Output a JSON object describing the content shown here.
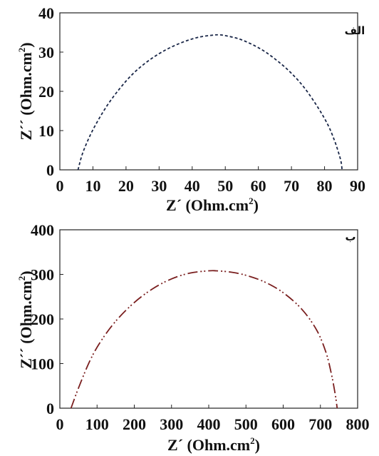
{
  "chart_data": [
    {
      "type": "line",
      "panel_label": "الف",
      "xlabel": "Z´ (Ohm.cm",
      "xlabel_sup": "2",
      "xlabel_end": ")",
      "ylabel": "Z´´ (Ohm.cm",
      "ylabel_sup": "2",
      "ylabel_end": ")",
      "xlim": [
        0,
        90
      ],
      "ylim": [
        0,
        40
      ],
      "xticks": [
        0,
        10,
        20,
        30,
        40,
        50,
        60,
        70,
        80,
        90
      ],
      "yticks": [
        0,
        10,
        20,
        30,
        40
      ],
      "grid": false,
      "line_color": "#1a2748",
      "line_style": "dashed",
      "series": [
        {
          "x": [
            5.5,
            7,
            10,
            14,
            18,
            22,
            26,
            30,
            34,
            38,
            42,
            46,
            48,
            50,
            54,
            58,
            62,
            66,
            70,
            74,
            78,
            81,
            83,
            84.3,
            85,
            85.3
          ],
          "y": [
            0,
            4.5,
            10.2,
            16.0,
            20.6,
            24.4,
            27.3,
            29.6,
            31.4,
            32.8,
            33.8,
            34.3,
            34.4,
            34.2,
            33.4,
            32.0,
            30.1,
            27.6,
            24.6,
            20.8,
            15.9,
            11.5,
            7.5,
            4.2,
            2.0,
            0
          ]
        }
      ]
    },
    {
      "type": "line",
      "panel_label": "ب",
      "xlabel": "Z´ (Ohm.cm",
      "xlabel_sup": "2",
      "xlabel_end": ")",
      "ylabel": "Z´´ (Ohm.cm",
      "ylabel_sup": "2",
      "ylabel_end": ")",
      "xlim": [
        0,
        800
      ],
      "ylim": [
        0,
        400
      ],
      "xticks": [
        0,
        100,
        200,
        300,
        400,
        500,
        600,
        700,
        800
      ],
      "yticks": [
        0,
        100,
        200,
        300,
        400
      ],
      "grid": false,
      "line_color": "#7a1f1f",
      "line_style": "dash-dot-dot",
      "series": [
        {
          "x": [
            30,
            50,
            80,
            110,
            150,
            200,
            250,
            300,
            350,
            400,
            420,
            460,
            500,
            550,
            600,
            650,
            690,
            715,
            730,
            740,
            745
          ],
          "y": [
            0,
            45,
            105,
            150,
            195,
            237,
            268,
            290,
            303,
            308,
            308,
            305,
            298,
            283,
            259,
            222,
            175,
            125,
            75,
            30,
            0
          ]
        }
      ]
    }
  ]
}
